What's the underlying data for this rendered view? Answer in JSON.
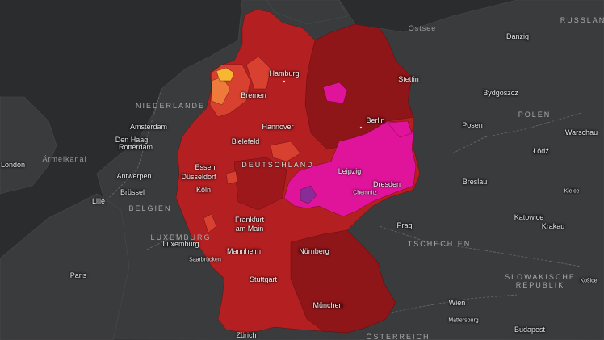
{
  "map": {
    "countries": [
      {
        "key": "nl",
        "text": "NIEDERLANDE"
      },
      {
        "key": "de",
        "text": "DEUTSCHLAND"
      },
      {
        "key": "be",
        "text": "BELGIEN"
      },
      {
        "key": "lu",
        "text": "LUXEMBURG"
      },
      {
        "key": "pl",
        "text": "POLEN"
      },
      {
        "key": "cz",
        "text": "TSCHECHIEN"
      },
      {
        "key": "sk1",
        "text": "SLOWAKISCHE"
      },
      {
        "key": "sk2",
        "text": "REPUBLIK"
      },
      {
        "key": "at",
        "text": "ÖSTERREICH"
      },
      {
        "key": "ru",
        "text": "RUSSLANE"
      }
    ],
    "seas": [
      {
        "key": "ostsee",
        "text": "Ostsee"
      },
      {
        "key": "aermelkanal",
        "text": "Ärmelkanal"
      }
    ],
    "cities": [
      {
        "key": "hamburg",
        "text": "Hamburg",
        "region": "de"
      },
      {
        "key": "bremen",
        "text": "Bremen",
        "region": "de"
      },
      {
        "key": "hannover",
        "text": "Hannover",
        "region": "de"
      },
      {
        "key": "bielefeld",
        "text": "Bielefeld",
        "region": "de"
      },
      {
        "key": "essen",
        "text": "Essen",
        "region": "de"
      },
      {
        "key": "duesseldorf",
        "text": "Düsseldorf",
        "region": "de"
      },
      {
        "key": "koeln",
        "text": "Köln",
        "region": "de"
      },
      {
        "key": "frankfurt1",
        "text": "Frankfurt",
        "region": "de"
      },
      {
        "key": "frankfurt2",
        "text": "am Main",
        "region": "de"
      },
      {
        "key": "mannheim",
        "text": "Mannheim",
        "region": "de"
      },
      {
        "key": "nuernberg",
        "text": "Nürnberg",
        "region": "de"
      },
      {
        "key": "stuttgart",
        "text": "Stuttgart",
        "region": "de"
      },
      {
        "key": "muenchen",
        "text": "München",
        "region": "de"
      },
      {
        "key": "berlin",
        "text": "Berlin",
        "region": "de"
      },
      {
        "key": "stettin",
        "text": "Stettin",
        "region": "de"
      },
      {
        "key": "leipzig",
        "text": "Leipzig",
        "region": "de"
      },
      {
        "key": "dresden",
        "text": "Dresden",
        "region": "de"
      },
      {
        "key": "chemnitz",
        "text": "Chemnitz",
        "region": "de"
      },
      {
        "key": "saarbruecken",
        "text": "Saarbrücken",
        "region": "de"
      },
      {
        "key": "amsterdam",
        "text": "Amsterdam",
        "region": "other"
      },
      {
        "key": "denhaag",
        "text": "Den Haag",
        "region": "other"
      },
      {
        "key": "rotterdam",
        "text": "Rotterdam",
        "region": "other"
      },
      {
        "key": "antwerpen",
        "text": "Antwerpen",
        "region": "other"
      },
      {
        "key": "bruessel",
        "text": "Brüssel",
        "region": "other"
      },
      {
        "key": "lille",
        "text": "Lille",
        "region": "other"
      },
      {
        "key": "london",
        "text": "London",
        "region": "other"
      },
      {
        "key": "luxemburg",
        "text": "Luxemburg",
        "region": "other"
      },
      {
        "key": "paris",
        "text": "Paris",
        "region": "other"
      },
      {
        "key": "zuerich",
        "text": "Zürich",
        "region": "other"
      },
      {
        "key": "danzig",
        "text": "Danzig",
        "region": "other"
      },
      {
        "key": "bydgoszcz",
        "text": "Bydgoszcz",
        "region": "other"
      },
      {
        "key": "posen",
        "text": "Posen",
        "region": "other"
      },
      {
        "key": "warschau",
        "text": "Warschau",
        "region": "other"
      },
      {
        "key": "lodz",
        "text": "Łódź",
        "region": "other"
      },
      {
        "key": "breslau",
        "text": "Breslau",
        "region": "other"
      },
      {
        "key": "kielce",
        "text": "Kielce",
        "region": "other"
      },
      {
        "key": "katowice",
        "text": "Katowice",
        "region": "other"
      },
      {
        "key": "krakau",
        "text": "Krakau",
        "region": "other"
      },
      {
        "key": "prag",
        "text": "Prag",
        "region": "other"
      },
      {
        "key": "wien",
        "text": "Wien",
        "region": "other"
      },
      {
        "key": "mattersburg",
        "text": "Mattersburg",
        "region": "other"
      },
      {
        "key": "budapest",
        "text": "Budapest",
        "region": "other"
      },
      {
        "key": "kosice",
        "text": "Košice",
        "region": "other"
      }
    ],
    "colors": {
      "background": "#2b2c2e",
      "land": "#3a3b3d",
      "border": "#5a5a5a",
      "level_very_high": "#8e1518",
      "level_high": "#b41f21",
      "level_mid": "#d8412f",
      "level_low": "#ee7a3c",
      "level_lowest": "#f7b733",
      "level_extreme": "#e0149b",
      "level_max": "#8a2b9a"
    }
  }
}
